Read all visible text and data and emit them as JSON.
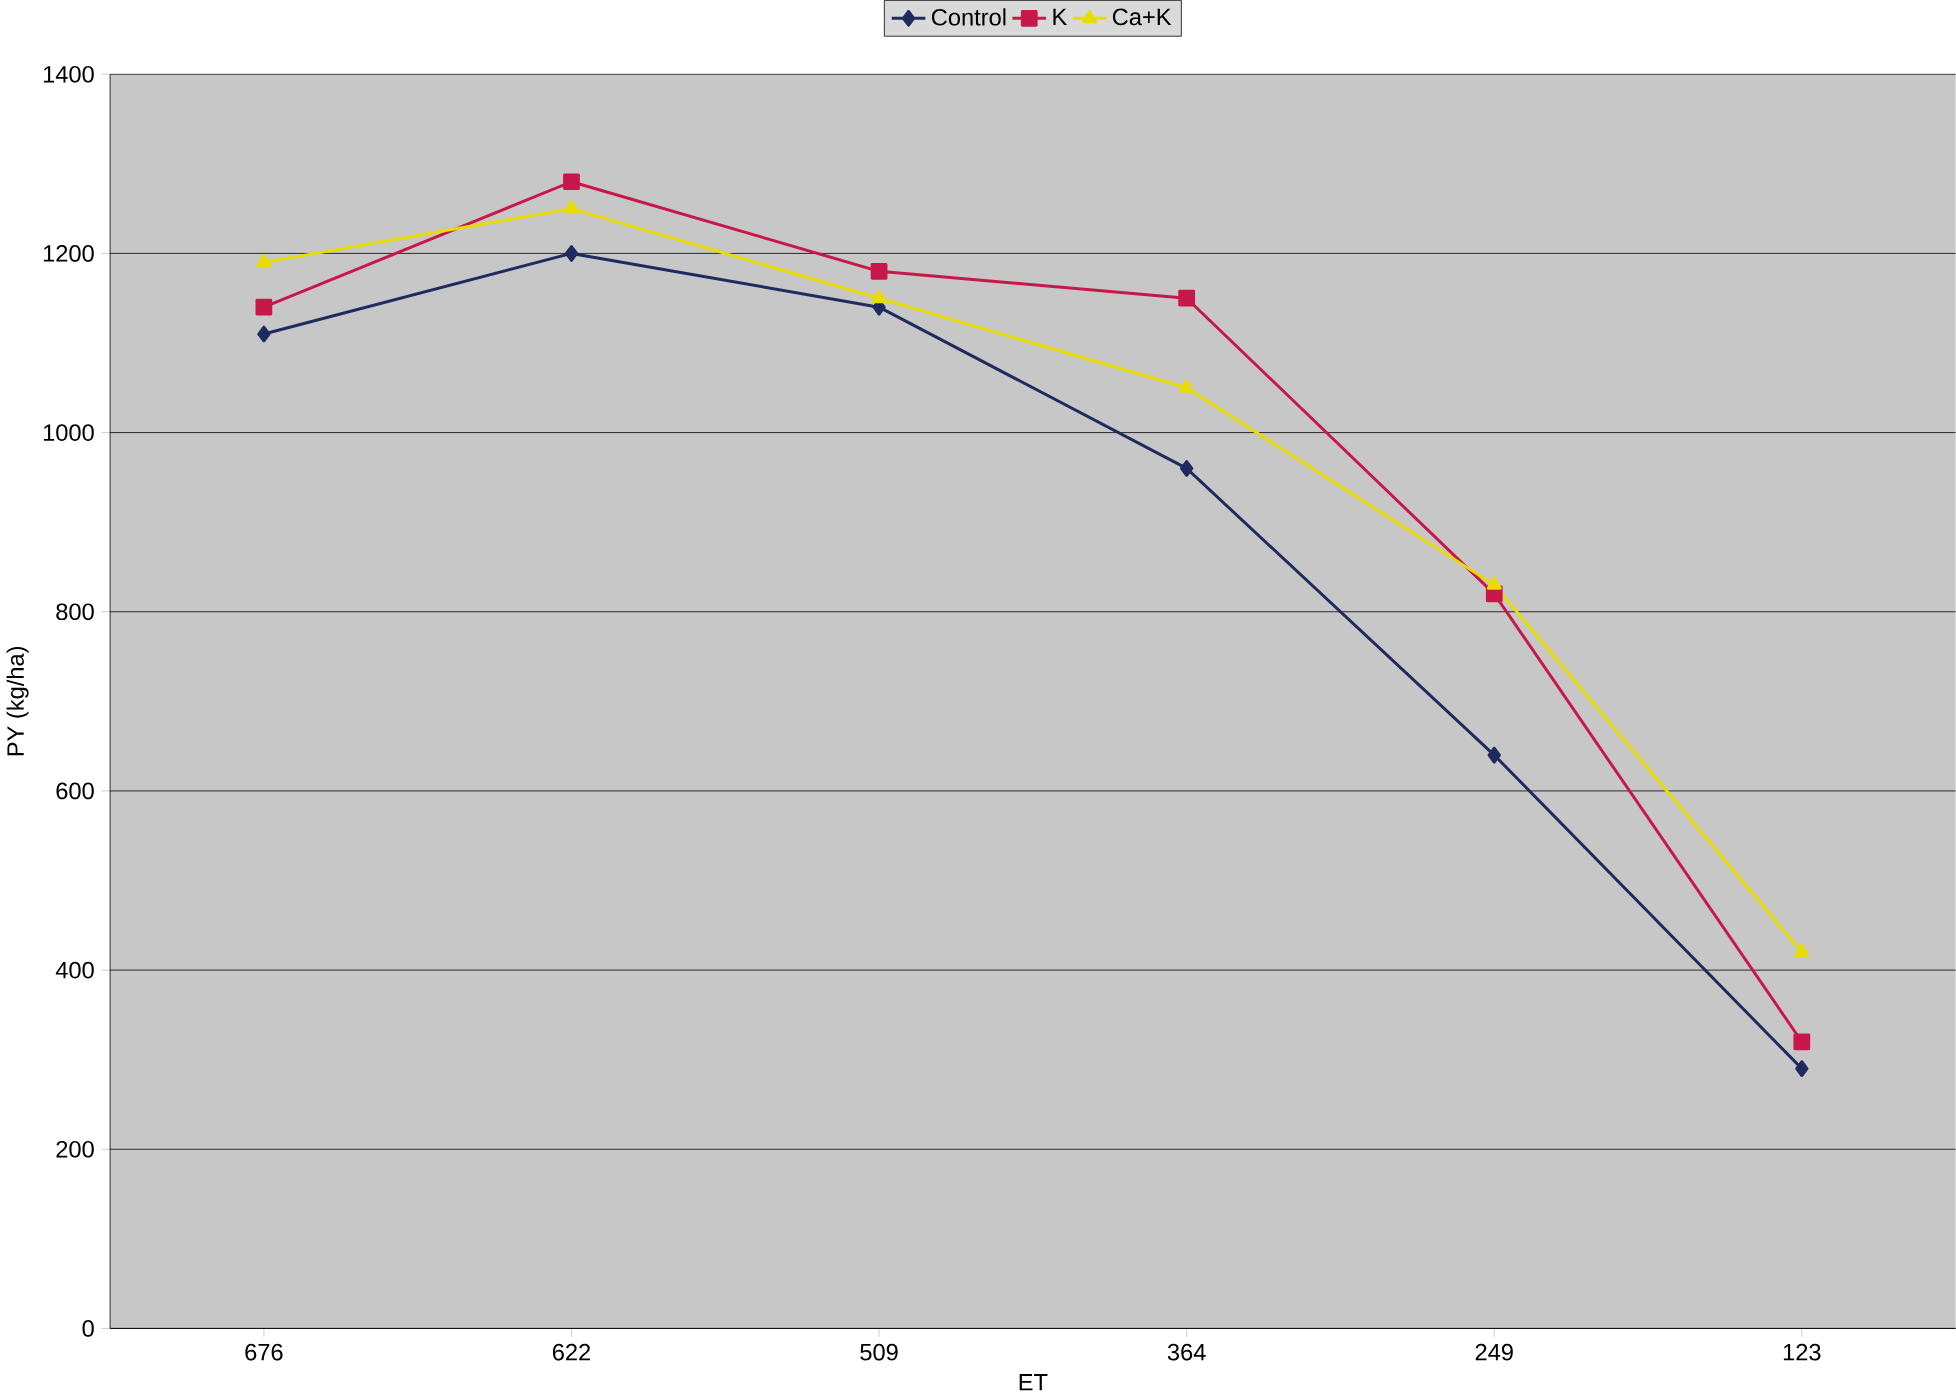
{
  "chart_data": {
    "type": "line",
    "xlabel": "ET",
    "ylabel": "PY (kg/ha)",
    "categories": [
      "676",
      "622",
      "509",
      "364",
      "249",
      "123"
    ],
    "series": [
      {
        "name": "Control",
        "color": "#1f2a5e",
        "marker": "diamond",
        "values": [
          1110,
          1200,
          1140,
          960,
          640,
          290
        ]
      },
      {
        "name": "K",
        "color": "#c8174a",
        "marker": "square",
        "values": [
          1140,
          1280,
          1180,
          1150,
          820,
          320
        ]
      },
      {
        "name": "Ca+K",
        "color": "#e8dc00",
        "marker": "triangle",
        "values": [
          1190,
          1250,
          1150,
          1050,
          830,
          420
        ]
      }
    ],
    "ylim": [
      0,
      1400
    ],
    "yticks": [
      0,
      200,
      400,
      600,
      800,
      1000,
      1200,
      1400
    ],
    "grid": "y",
    "legend": "top",
    "line_style": "solid"
  }
}
